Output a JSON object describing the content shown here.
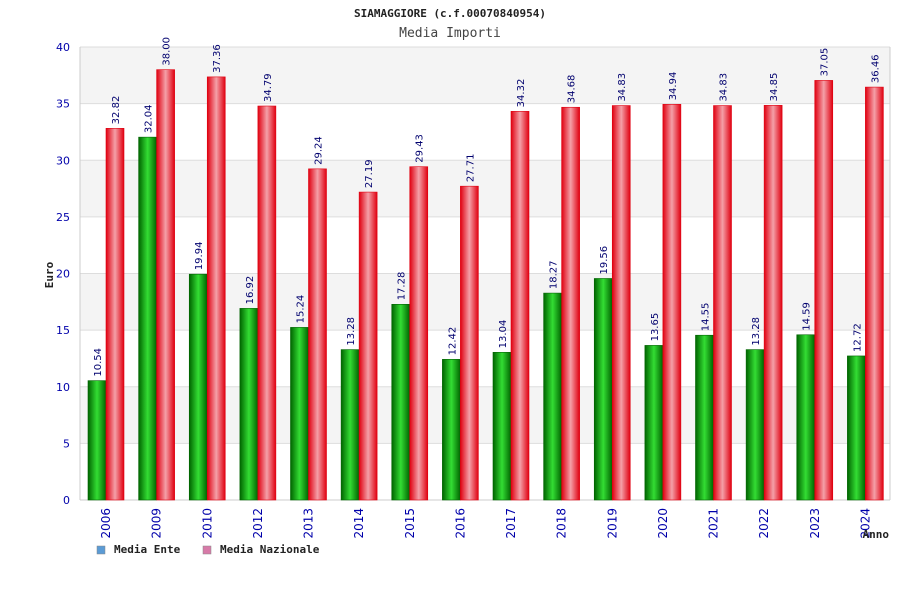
{
  "chart_data": {
    "type": "bar",
    "title": "SIAMAGGIORE (c.f.00070840954)",
    "subtitle": "Media Importi",
    "xlabel": "Anno",
    "ylabel": "Euro",
    "ylim": [
      0,
      40
    ],
    "yticks": [
      0,
      5,
      10,
      15,
      20,
      25,
      30,
      35,
      40
    ],
    "grid": true,
    "categories": [
      "2006",
      "2009",
      "2010",
      "2012",
      "2013",
      "2014",
      "2015",
      "2016",
      "2017",
      "2018",
      "2019",
      "2020",
      "2021",
      "2022",
      "2023",
      "2024"
    ],
    "series": [
      {
        "name": "Media Ente",
        "values": [
          10.54,
          32.04,
          19.94,
          16.92,
          15.24,
          13.28,
          17.28,
          12.42,
          13.04,
          18.27,
          19.56,
          13.65,
          14.55,
          13.28,
          14.59,
          12.72
        ],
        "labels": [
          "10.54",
          "32.04",
          "19.94",
          "16.92",
          "15.24",
          "13.28",
          "17.28",
          "12.42",
          "13.04",
          "18.27",
          "19.56",
          "13.65",
          "14.55",
          "13.28",
          "14.59",
          "12.72"
        ]
      },
      {
        "name": "Media Nazionale",
        "values": [
          32.82,
          38.0,
          37.36,
          34.79,
          29.24,
          27.19,
          29.43,
          27.71,
          34.32,
          34.68,
          34.83,
          34.94,
          34.83,
          34.85,
          37.05,
          36.46
        ],
        "labels": [
          "32.82",
          "38.00",
          "37.36",
          "34.79",
          "29.24",
          "27.19",
          "29.43",
          "27.71",
          "34.32",
          "34.68",
          "34.83",
          "34.94",
          "34.83",
          "34.85",
          "37.05",
          "36.46"
        ]
      }
    ],
    "legend": {
      "placement": "bottom-left",
      "entries": [
        {
          "label": "Media Ente",
          "color": "#5b9bd5"
        },
        {
          "label": "Media Nazionale",
          "color": "#d77aa8"
        }
      ]
    },
    "colors": {
      "ente_dark": "#006400",
      "ente_light": "#33dd33",
      "naz_dark": "#e00010",
      "naz_light": "#f4a0a8",
      "axis_text": "#0000aa",
      "title_text": "#222222"
    }
  }
}
